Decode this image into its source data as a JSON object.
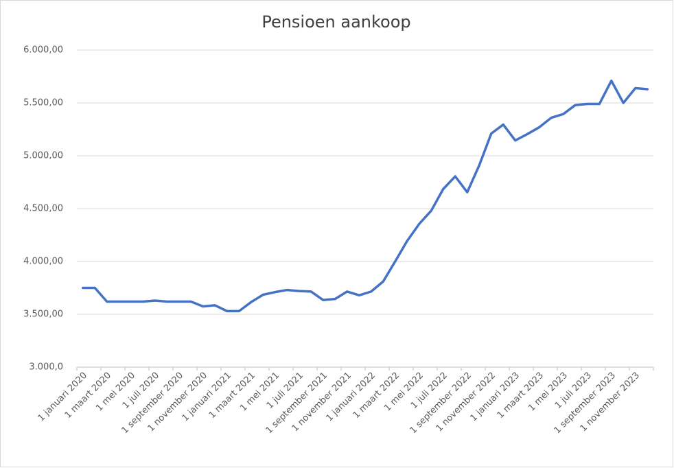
{
  "chart_data": {
    "type": "line",
    "title": "Pensioen aankoop",
    "categories": [
      "1 januari 2020",
      null,
      "1 maart 2020",
      null,
      "1 mei 2020",
      null,
      "1 juli 2020",
      null,
      "1 september 2020",
      null,
      "1 november 2020",
      null,
      "1 januari 2021",
      null,
      "1 maart 2021",
      null,
      "1 mei 2021",
      null,
      "1 juli 2021",
      null,
      "1 september 2021",
      null,
      "1 november 2021",
      null,
      "1 januari 2022",
      null,
      "1 maart 2022",
      null,
      "1 mei 2022",
      null,
      "1 juli 2022",
      null,
      "1 september 2022",
      null,
      "1 november 2022",
      null,
      "1 januari 2023",
      null,
      "1 maart 2023",
      null,
      "1 mei 2023",
      null,
      "1 juli 2023",
      null,
      "1 september 2023",
      null,
      "1 november 2023",
      null
    ],
    "series": [
      {
        "name": "Pensioen aankoop",
        "color": "#4472c4",
        "values": [
          3750,
          3750,
          3620,
          3620,
          3620,
          3620,
          3630,
          3620,
          3620,
          3620,
          3575,
          3585,
          3530,
          3530,
          3615,
          3685,
          3710,
          3730,
          3720,
          3715,
          3635,
          3645,
          3715,
          3680,
          3715,
          3810,
          4000,
          4195,
          4355,
          4480,
          4685,
          4805,
          4655,
          4910,
          5210,
          5295,
          5145,
          5205,
          5270,
          5360,
          5395,
          5480,
          5490,
          5490,
          5710,
          5500,
          5640,
          5630
        ]
      }
    ],
    "ylim": [
      3000,
      6000
    ],
    "yticks": [
      {
        "value": 3000,
        "label": "3.000,0"
      },
      {
        "value": 3500,
        "label": "3.500,00"
      },
      {
        "value": 4000,
        "label": "4.000,00"
      },
      {
        "value": 4500,
        "label": "4.500,00"
      },
      {
        "value": 5000,
        "label": "5.000,00"
      },
      {
        "value": 5500,
        "label": "5.500,00"
      },
      {
        "value": 6000,
        "label": "6.000,00"
      }
    ],
    "grid": true
  }
}
